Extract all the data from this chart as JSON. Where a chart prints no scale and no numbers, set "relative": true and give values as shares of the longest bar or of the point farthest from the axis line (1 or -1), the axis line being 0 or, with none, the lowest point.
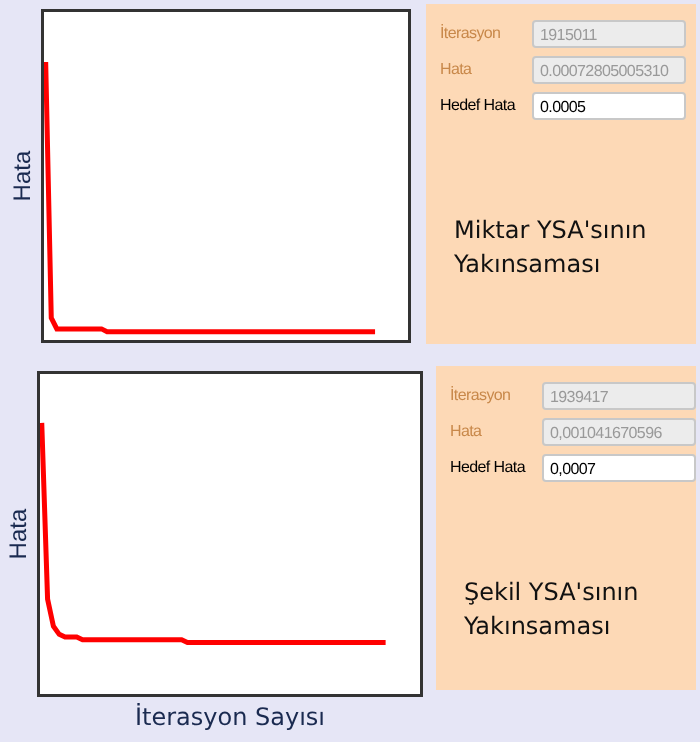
{
  "chart_data": [
    {
      "type": "line",
      "relative": true,
      "ylabel": "Hata",
      "categories": [
        null,
        null,
        null,
        null,
        null,
        null,
        null,
        null,
        null,
        null,
        null,
        null,
        null,
        null,
        null,
        null,
        null,
        null,
        null,
        null,
        null,
        null,
        null,
        null,
        null,
        null,
        null,
        null,
        null,
        null,
        null,
        null,
        null,
        null,
        null,
        null,
        null,
        null,
        null,
        null,
        null,
        null,
        null,
        null,
        null,
        null,
        null,
        null,
        null,
        null,
        null,
        null,
        null,
        null,
        null,
        null,
        null,
        null,
        null,
        null
      ],
      "series": [
        {
          "color": "#ff0000",
          "values": [
            1,
            0.08,
            0.04,
            0.04,
            0.04,
            0.04,
            0.04,
            0.04,
            0.04,
            0.04,
            0.04,
            0.03,
            0.03,
            0.03,
            0.03,
            0.03,
            0.03,
            0.03,
            0.03,
            0.03,
            0.03,
            0.03,
            0.03,
            0.03,
            0.03,
            0.03,
            0.03,
            0.03,
            0.03,
            0.03,
            0.03,
            0.03,
            0.03,
            0.03,
            0.03,
            0.03,
            0.03,
            0.03,
            0.03,
            0.03,
            0.03,
            0.03,
            0.03,
            0.03,
            0.03,
            0.03,
            0.03,
            0.03,
            0.03,
            0.03,
            0.03,
            0.03,
            0.03,
            0.03,
            0.03,
            0.03,
            0.03,
            0.03,
            0.03,
            0.03
          ]
        }
      ],
      "marker": "none",
      "line_style": "solid",
      "grid": false,
      "legend": false
    },
    {
      "type": "other",
      "annotations": [
        "İterasyon",
        "1915011",
        "Hata",
        "0.00072805005310",
        "Hedef Hata",
        "0.0005",
        "Miktar YSA'sının Yakınsaması"
      ]
    },
    {
      "type": "line",
      "relative": true,
      "ylabel": "Hata",
      "xlabel": "İterasyon Sayısı",
      "categories": [
        null,
        null,
        null,
        null,
        null,
        null,
        null,
        null,
        null,
        null,
        null,
        null,
        null,
        null,
        null,
        null,
        null,
        null,
        null,
        null,
        null,
        null,
        null,
        null,
        null,
        null,
        null,
        null,
        null,
        null,
        null,
        null,
        null,
        null,
        null,
        null,
        null,
        null,
        null,
        null,
        null,
        null,
        null,
        null,
        null,
        null,
        null,
        null,
        null,
        null,
        null,
        null,
        null,
        null,
        null,
        null,
        null,
        null,
        null,
        null
      ],
      "series": [
        {
          "color": "#ff0000",
          "values": [
            1,
            0.35,
            0.25,
            0.22,
            0.21,
            0.21,
            0.21,
            0.2,
            0.2,
            0.2,
            0.2,
            0.2,
            0.2,
            0.2,
            0.2,
            0.2,
            0.2,
            0.2,
            0.2,
            0.2,
            0.2,
            0.2,
            0.2,
            0.2,
            0.2,
            0.19,
            0.19,
            0.19,
            0.19,
            0.19,
            0.19,
            0.19,
            0.19,
            0.19,
            0.19,
            0.19,
            0.19,
            0.19,
            0.19,
            0.19,
            0.19,
            0.19,
            0.19,
            0.19,
            0.19,
            0.19,
            0.19,
            0.19,
            0.19,
            0.19,
            0.19,
            0.19,
            0.19,
            0.19,
            0.19,
            0.19,
            0.19,
            0.19,
            0.19,
            0.19
          ]
        }
      ],
      "marker": "none",
      "line_style": "solid",
      "grid": false,
      "legend": false
    },
    {
      "type": "other",
      "annotations": [
        "İterasyon",
        "1939417",
        "Hata",
        "0,001041670596",
        "Hedef Hata",
        "0,0007",
        "Şekil YSA'sının Yakınsaması"
      ]
    }
  ]
}
